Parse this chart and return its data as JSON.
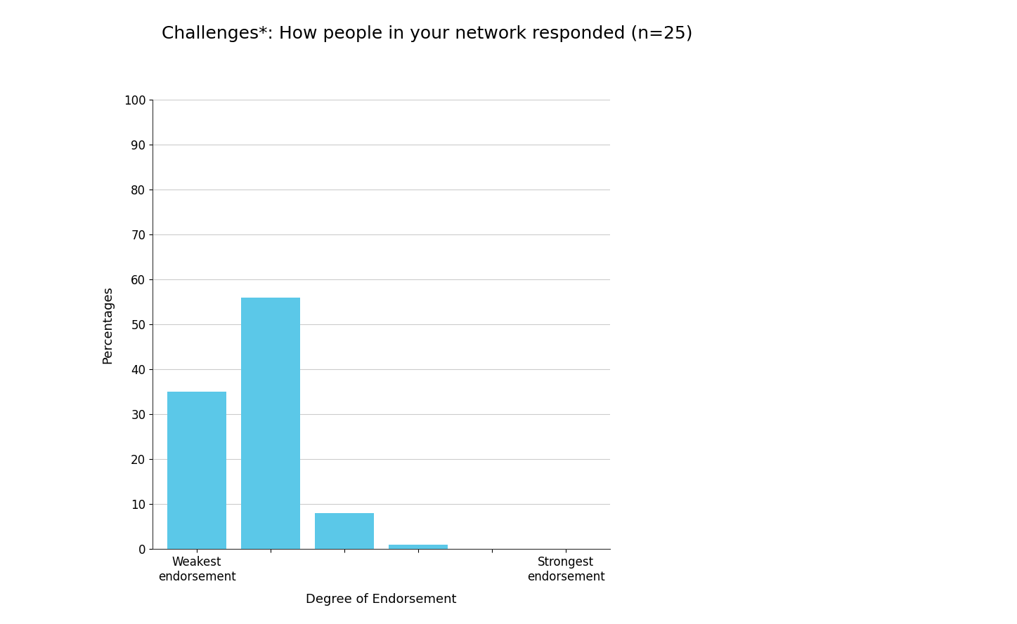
{
  "title": "Challenges*: How people in your network responded (n=25)",
  "xlabel": "Degree of Endorsement",
  "ylabel": "Percentages",
  "bar_color": "#5BC8E8",
  "background_color": "#ffffff",
  "plot_bg_color": "#ffffff",
  "grid_color": "#cccccc",
  "categories": [
    "Weakest\nendorsement",
    "",
    "",
    "",
    "",
    "Strongest\nendorsement"
  ],
  "x_positions": [
    1,
    2,
    3,
    4,
    5,
    6
  ],
  "values": [
    35,
    56,
    8,
    1,
    0,
    0
  ],
  "ylim": [
    0,
    100
  ],
  "yticks": [
    0,
    10,
    20,
    30,
    40,
    50,
    60,
    70,
    80,
    90,
    100
  ],
  "title_fontsize": 18,
  "axis_label_fontsize": 13,
  "tick_fontsize": 12
}
